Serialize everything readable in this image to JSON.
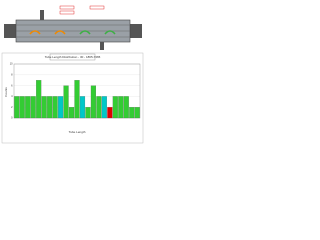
{
  "chart_data": {
    "type": "bar",
    "title": "Tube Length Distribution - 30 - 1865-7365",
    "y_label": "Counts",
    "x_label": "Tube Length",
    "categories": [
      null,
      null,
      null,
      null,
      null,
      null,
      null,
      null,
      null,
      null,
      null,
      null,
      null,
      null,
      null,
      null,
      null,
      null,
      null,
      null,
      null,
      null,
      null
    ],
    "values": [
      4,
      4,
      4,
      4,
      7,
      4,
      4,
      4,
      4,
      6,
      2,
      7,
      4,
      2,
      6,
      4,
      4,
      2,
      4,
      4,
      4,
      2,
      2
    ],
    "colors": [
      "#33cc33",
      "#33cc33",
      "#33cc33",
      "#33cc33",
      "#33cc33",
      "#33cc33",
      "#33cc33",
      "#33cc33",
      "#00c8c8",
      "#33cc33",
      "#33cc33",
      "#33cc33",
      "#00c8c8",
      "#33cc33",
      "#33cc33",
      "#33cc33",
      "#00c8c8",
      "#e00000",
      "#33cc33",
      "#33cc33",
      "#33cc33",
      "#33cc33",
      "#33cc33"
    ],
    "ylim": [
      0,
      10
    ],
    "yticks": [
      0,
      2,
      4,
      6,
      8,
      10
    ],
    "grid": true
  }
}
